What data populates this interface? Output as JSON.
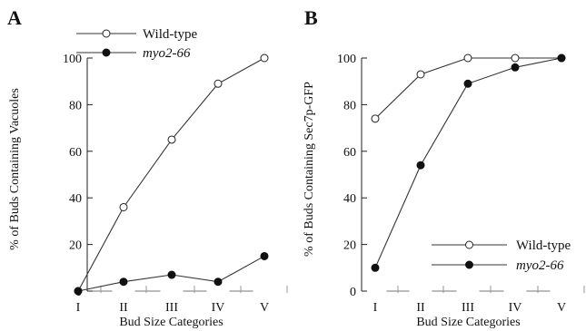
{
  "chart_data": [
    {
      "type": "line",
      "panel_label": "A",
      "categories": [
        "I",
        "II",
        "III",
        "IV",
        "V"
      ],
      "series": [
        {
          "name": "Wild-type",
          "marker": "open-circle",
          "values": [
            0,
            36,
            65,
            89,
            100
          ]
        },
        {
          "name": "myo2-66",
          "marker": "filled-circle",
          "italic": true,
          "values": [
            0,
            4,
            7,
            4,
            15
          ]
        }
      ],
      "xlabel": "Bud Size Categories",
      "ylabel": "% of Buds Containing Vacuoles",
      "ylim": [
        0,
        100
      ],
      "yticks": [
        "0",
        "20",
        "40",
        "60",
        "80",
        "100"
      ],
      "legend_position": "top-left",
      "grid": false
    },
    {
      "type": "line",
      "panel_label": "B",
      "categories": [
        "I",
        "II",
        "III",
        "IV",
        "V"
      ],
      "series": [
        {
          "name": "Wild-type",
          "marker": "open-circle",
          "values": [
            74,
            93,
            100,
            100,
            100
          ]
        },
        {
          "name": "myo2-66",
          "marker": "filled-circle",
          "italic": true,
          "values": [
            10,
            54,
            89,
            96,
            100
          ]
        }
      ],
      "xlabel": "Bud Size Categories",
      "ylabel": "% of Buds Containing Sec7p-GFP",
      "ylim": [
        0,
        100
      ],
      "yticks": [
        "0",
        "20",
        "40",
        "60",
        "80",
        "100"
      ],
      "legend_position": "bottom-right",
      "grid": false
    }
  ],
  "colors": {
    "line": "#333333",
    "marker_fill": "#111111",
    "marker_open": "#ffffff"
  }
}
